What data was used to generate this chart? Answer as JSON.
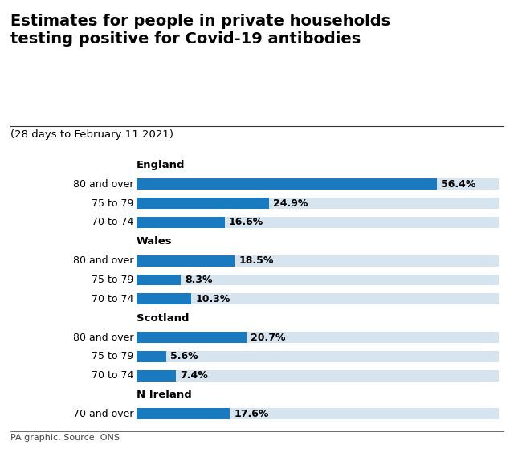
{
  "title": "Estimates for people in private households\ntesting positive for Covid-19 antibodies",
  "subtitle": "(28 days to February 11 2021)",
  "footer": "PA graphic. Source: ONS",
  "bar_color": "#1a7abf",
  "bar_bg_color": "#d6e4f0",
  "fig_bg": "#ffffff",
  "groups": [
    {
      "name": "England",
      "bars": [
        {
          "label": "80 and over",
          "value": 56.4
        },
        {
          "label": "75 to 79",
          "value": 24.9
        },
        {
          "label": "70 to 74",
          "value": 16.6
        }
      ]
    },
    {
      "name": "Wales",
      "bars": [
        {
          "label": "80 and over",
          "value": 18.5
        },
        {
          "label": "75 to 79",
          "value": 8.3
        },
        {
          "label": "70 to 74",
          "value": 10.3
        }
      ]
    },
    {
      "name": "Scotland",
      "bars": [
        {
          "label": "80 and over",
          "value": 20.7
        },
        {
          "label": "75 to 79",
          "value": 5.6
        },
        {
          "label": "70 to 74",
          "value": 7.4
        }
      ]
    },
    {
      "name": "N Ireland",
      "bars": [
        {
          "label": "70 and over",
          "value": 17.6
        }
      ]
    }
  ],
  "max_value": 68,
  "label_indent": [
    0,
    12,
    12
  ],
  "title_fontsize": 14,
  "subtitle_fontsize": 9.5,
  "bar_label_fontsize": 9,
  "group_label_fontsize": 9.5,
  "value_fontsize": 9,
  "footer_fontsize": 8
}
